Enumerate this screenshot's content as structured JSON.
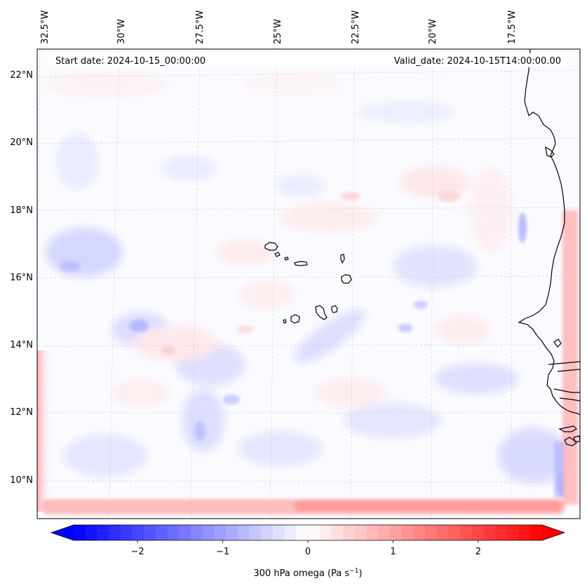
{
  "map": {
    "start_date": "Start date: 2024-10-15_00:00:00",
    "valid_date": "Valid_date: 2024-10-15T14:00:00.00",
    "lon_labels": [
      "32.5°W",
      "30°W",
      "27.5°W",
      "25°W",
      "22.5°W",
      "20°W",
      "17.5°W"
    ],
    "lat_labels": [
      "22°N",
      "20°N",
      "18°N",
      "16°N",
      "14°N",
      "12°N",
      "10°N"
    ]
  },
  "colorbar": {
    "label": "300 hPa omega (Pa s",
    "label_exp": "−1",
    "label_close": ")",
    "ticks": [
      "−2",
      "−1",
      "0",
      "1",
      "2"
    ],
    "range": [
      -2.75,
      2.75
    ],
    "neg_color": "#0000ff",
    "pos_color": "#ff0000",
    "mid_color": "#ffffff"
  },
  "colors": {
    "coast": "#000000",
    "grid": "#c8c8c8",
    "frame": "#000000"
  }
}
